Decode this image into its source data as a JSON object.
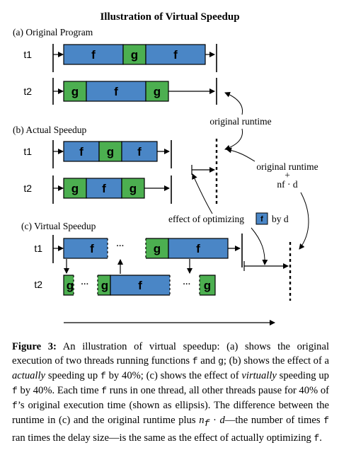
{
  "figure": {
    "title": "Illustration of Virtual Speedup",
    "sections": {
      "a": "(a) Original Program",
      "b": "(b) Actual Speedup",
      "c": "(c) Virtual Speedup"
    },
    "threads": [
      "t1",
      "t2"
    ],
    "functions": {
      "f": "f",
      "g": "g"
    },
    "ellipsis": "···",
    "annotations": {
      "original_runtime": "original runtime",
      "original_runtime_2": "original runtime",
      "plus": "+",
      "nf_d": "nf · d",
      "effect_prefix": "effect of optimizing",
      "effect_fn": "f",
      "effect_suffix": "by d"
    },
    "colors": {
      "f_block": "#4a86c6",
      "g_block": "#4caf50",
      "line": "#000000"
    }
  },
  "caption": {
    "label": "Figure 3:",
    "s1": " An illustration of virtual speedup: (a) shows the original execution of two threads running functions ",
    "code_f1": "f",
    "s2": " and ",
    "code_g1": "g",
    "s3": "; (b) shows the effect of a ",
    "em1": "actually",
    "s4": " speeding up ",
    "code_f2": "f",
    "s5": " by 40%; (c) shows the effect of ",
    "em2": "virtually",
    "s6": " speeding up ",
    "code_f3": "f",
    "s7": " by 40%. Each time ",
    "code_f4": "f",
    "s8": " runs in one thread, all other threads pause for 40% of ",
    "code_f5": "f",
    "s9": "’s original execution time (shown as ellipsis). The difference between the runtime in (c) and the original runtime plus ",
    "em3": "n",
    "sub3": "f",
    "s10": " · ",
    "em4": "d",
    "s11": "—the number of times ",
    "code_f6": "f",
    "s12": " ran times the delay size—is the same as the effect of actually optimizing ",
    "code_f7": "f",
    "s13": "."
  }
}
